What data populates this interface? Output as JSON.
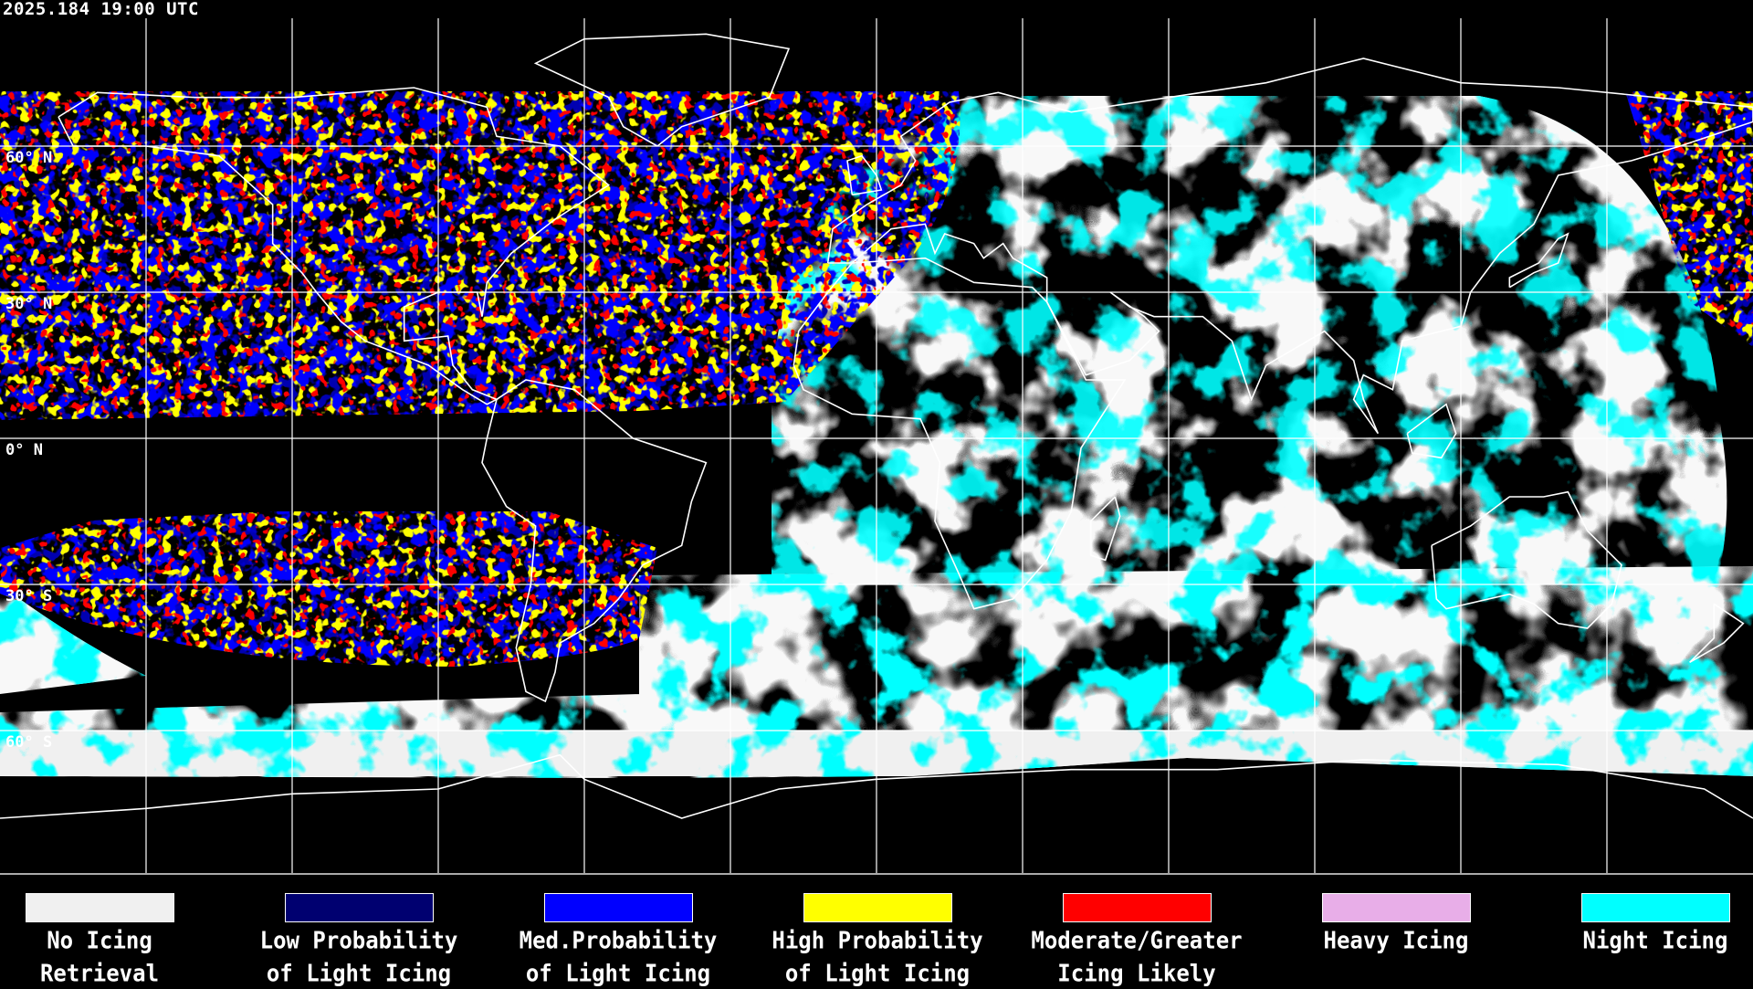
{
  "timestamp": "2025.184 19:00 UTC",
  "map": {
    "projection": "equirectangular",
    "grid_spacing_deg": 30,
    "lat_labels": [
      "60° N",
      "30° N",
      "0° N",
      "30° S",
      "60° S"
    ]
  },
  "legend": [
    {
      "line1": "No Icing",
      "line2": "Retrieval",
      "color": "#f0f0f0"
    },
    {
      "line1": "Low Probability",
      "line2": "of Light Icing",
      "color": "#000070"
    },
    {
      "line1": "Med.Probability",
      "line2": "of Light Icing",
      "color": "#0000ff"
    },
    {
      "line1": "High Probability",
      "line2": "of Light Icing",
      "color": "#ffff00"
    },
    {
      "line1": "Moderate/Greater",
      "line2": "Icing Likely",
      "color": "#ff0000"
    },
    {
      "line1": "Heavy Icing",
      "line2": "",
      "color": "#e8aee8"
    },
    {
      "line1": "Night Icing",
      "line2": "",
      "color": "#00ffff"
    }
  ]
}
